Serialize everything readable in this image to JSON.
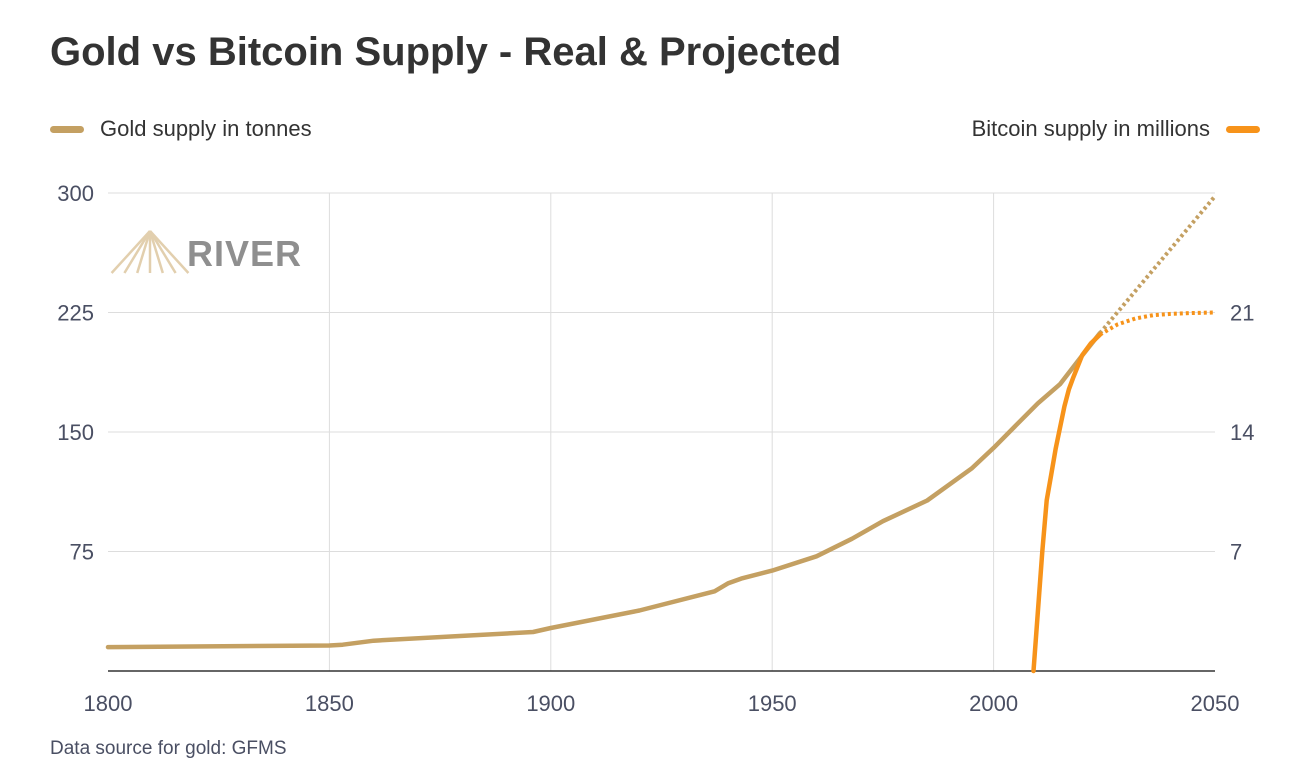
{
  "colors": {
    "gold": "#c4a062",
    "bitcoin": "#f7931a",
    "grid": "#dddddd",
    "axis": "#333333"
  },
  "logo": {
    "text": "RIVER",
    "color": "#8f8f8f",
    "mark_color": "#e2cfae"
  },
  "source": "Data source for gold: GFMS",
  "chart_data": {
    "type": "line",
    "title": "Gold vs Bitcoin Supply - Real & Projected",
    "xlabel": "",
    "ylabel": "",
    "y2label": "",
    "xlim": [
      1800,
      2050
    ],
    "ylim": [
      0,
      300
    ],
    "y2lim": [
      0,
      28
    ],
    "xticks": [
      1800,
      1850,
      1900,
      1950,
      2000,
      2050
    ],
    "yticks": [
      75,
      150,
      225,
      300
    ],
    "y2ticks": [
      7,
      14,
      21
    ],
    "grid": true,
    "legend_placement": "top",
    "series": [
      {
        "name": "Gold supply in tonnes",
        "axis": "left",
        "color": "#c4a062",
        "x": [
          1800,
          1850,
          1853,
          1860,
          1880,
          1896,
          1900,
          1920,
          1937,
          1940,
          1943,
          1950,
          1960,
          1968,
          1975,
          1985,
          1995,
          2000,
          2005,
          2010,
          2015,
          2020,
          2024
        ],
        "y": [
          15,
          16,
          16.5,
          19,
          22,
          24.5,
          27,
          38,
          50,
          55,
          58,
          63,
          72,
          83,
          94,
          107,
          127,
          140,
          154,
          168,
          180,
          198,
          212
        ]
      },
      {
        "name": "Gold supply in tonnes (projected)",
        "axis": "left",
        "color": "#c4a062",
        "style": "dotted",
        "x": [
          2024,
          2050
        ],
        "y": [
          212,
          298
        ]
      },
      {
        "name": "Bitcoin supply in millions",
        "axis": "right",
        "color": "#f7931a",
        "x": [
          2009,
          2010,
          2011,
          2012,
          2013,
          2014,
          2016,
          2017,
          2018,
          2020,
          2022,
          2024
        ],
        "y": [
          0,
          3.5,
          7,
          10,
          11.5,
          13,
          15.5,
          16.5,
          17.2,
          18.5,
          19.2,
          19.7
        ]
      },
      {
        "name": "Bitcoin supply in millions (projected)",
        "axis": "right",
        "color": "#f7931a",
        "style": "dotted",
        "x": [
          2024,
          2028,
          2032,
          2036,
          2040,
          2045,
          2050
        ],
        "y": [
          19.7,
          20.3,
          20.65,
          20.84,
          20.92,
          20.97,
          21
        ]
      }
    ],
    "legend": [
      {
        "label": "Gold supply in tonnes",
        "color": "#c4a062"
      },
      {
        "label": "Bitcoin supply in millions",
        "color": "#f7931a"
      }
    ]
  }
}
